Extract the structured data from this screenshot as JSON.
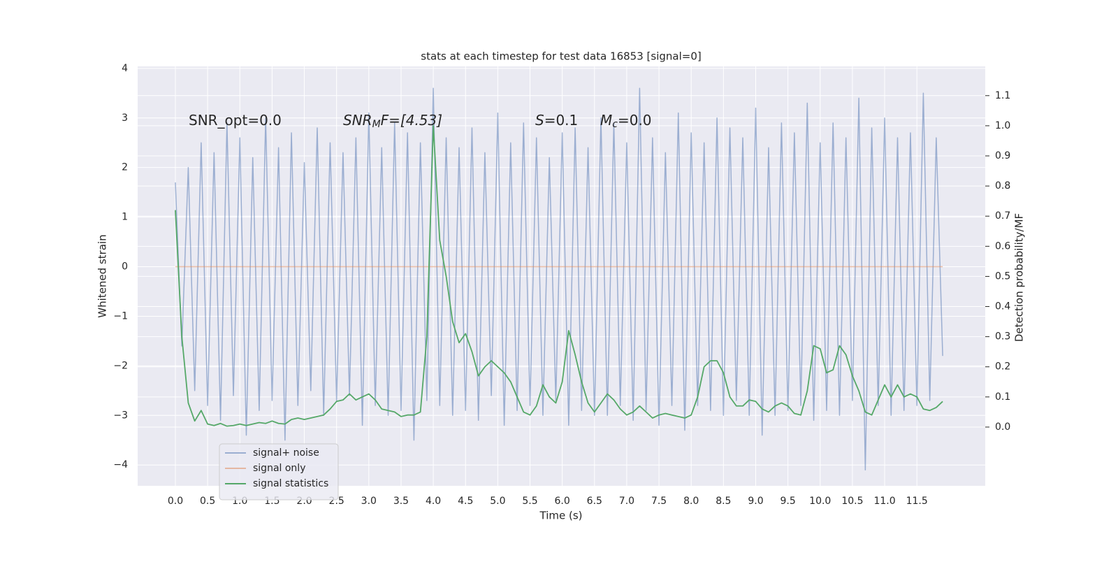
{
  "chart_data": {
    "type": "line",
    "title": "stats at each timestep for test data 16853 [signal=0]",
    "xlabel": "Time (s)",
    "ylabel": "Whitened strain",
    "y2label": "Detection probability/MF",
    "annotations": [
      {
        "text": "SNR_opt=0.0"
      },
      {
        "main": "SNR",
        "sub": "M",
        "tail": "F=[4.53]"
      },
      {
        "main": "S",
        "tail": "=0.1"
      },
      {
        "main": "M",
        "sub": "c",
        "tail": "=0.0"
      }
    ],
    "grid": true,
    "legend": "lower left",
    "xlim": [
      -0.585,
      12.56
    ],
    "ylim": [
      -4.42,
      4.04
    ],
    "y2lim": [
      -0.195,
      1.197
    ],
    "xticks": [
      {
        "value": 0,
        "label": "0.0"
      },
      0.5,
      {
        "value": 1,
        "label": "1.0"
      },
      1.5,
      {
        "value": 2,
        "label": "2.0"
      },
      2.5,
      {
        "value": 3,
        "label": "3.0"
      },
      3.5,
      {
        "value": 4,
        "label": "4.0"
      },
      4.5,
      {
        "value": 5,
        "label": "5.0"
      },
      5.5,
      {
        "value": 6,
        "label": "6.0"
      },
      6.5,
      {
        "value": 7,
        "label": "7.0"
      },
      7.5,
      {
        "value": 8,
        "label": "8.0"
      },
      8.5,
      {
        "value": 9,
        "label": "9.0"
      },
      9.5,
      {
        "value": 10,
        "label": "10.0"
      },
      10.5,
      {
        "value": 11,
        "label": "11.0"
      },
      11.5
    ],
    "yticks": [
      {
        "value": -4,
        "label": "−4"
      },
      {
        "value": -3,
        "label": "−3"
      },
      {
        "value": -2,
        "label": "−2"
      },
      {
        "value": -1,
        "label": "−1"
      },
      0,
      1,
      2,
      3,
      4
    ],
    "y2ticks": [
      {
        "value": 0,
        "label": "0.0"
      },
      0.1,
      0.2,
      0.3,
      0.4,
      0.5,
      0.6,
      0.7,
      0.8,
      0.9,
      {
        "value": 1,
        "label": "1.0"
      },
      1.1
    ],
    "x": [
      0,
      0.1,
      0.2,
      0.3,
      0.4,
      0.5,
      0.6,
      0.7,
      0.8,
      0.9,
      1,
      1.1,
      1.2,
      1.3,
      1.4,
      1.5,
      1.6,
      1.7,
      1.8,
      1.9,
      2,
      2.1,
      2.2,
      2.3,
      2.4,
      2.5,
      2.6,
      2.7,
      2.8,
      2.9,
      3,
      3.1,
      3.2,
      3.3,
      3.4,
      3.5,
      3.6,
      3.7,
      3.8,
      3.9,
      4,
      4.1,
      4.2,
      4.3,
      4.4,
      4.5,
      4.6,
      4.7,
      4.8,
      4.9,
      5,
      5.1,
      5.2,
      5.3,
      5.4,
      5.5,
      5.6,
      5.7,
      5.8,
      5.9,
      6,
      6.1,
      6.2,
      6.3,
      6.4,
      6.5,
      6.6,
      6.7,
      6.8,
      6.9,
      7,
      7.1,
      7.2,
      7.3,
      7.4,
      7.5,
      7.6,
      7.7,
      7.8,
      7.9,
      8,
      8.1,
      8.2,
      8.3,
      8.4,
      8.5,
      8.6,
      8.7,
      8.8,
      8.9,
      9,
      9.1,
      9.2,
      9.3,
      9.4,
      9.5,
      9.6,
      9.7,
      9.8,
      9.9,
      10,
      10.1,
      10.2,
      10.3,
      10.4,
      10.5,
      10.6,
      10.7,
      10.8,
      10.9,
      11,
      11.1,
      11.2,
      11.3,
      11.4,
      11.5,
      11.6,
      11.7,
      11.8,
      11.9
    ],
    "series": [
      {
        "name": "signal+ noise",
        "color": "#4c72b0",
        "values": [
          1.7,
          -1.6,
          2.0,
          -2.5,
          2.5,
          -2.8,
          2.3,
          -3.1,
          2.9,
          -2.6,
          2.6,
          -3.4,
          2.2,
          -2.9,
          3.0,
          -2.7,
          2.4,
          -3.5,
          2.7,
          -2.8,
          2.1,
          -2.5,
          2.8,
          -3.0,
          2.5,
          -2.7,
          2.3,
          -2.6,
          2.6,
          -3.2,
          3.1,
          -2.8,
          2.4,
          -3.0,
          2.9,
          -2.9,
          2.7,
          -3.5,
          2.5,
          -2.7,
          3.6,
          -2.8,
          2.6,
          -3.0,
          2.4,
          -2.9,
          2.8,
          -3.1,
          2.3,
          -2.6,
          3.1,
          -3.2,
          2.5,
          -2.9,
          2.9,
          -2.8,
          2.6,
          -3.0,
          2.2,
          -2.7,
          2.7,
          -3.2,
          2.8,
          -2.9,
          2.4,
          -3.0,
          3.0,
          -3.0,
          2.9,
          -2.8,
          2.5,
          -3.1,
          3.6,
          -2.9,
          2.6,
          -3.2,
          2.3,
          -2.8,
          3.1,
          -3.3,
          2.7,
          -2.8,
          2.5,
          -2.9,
          3.0,
          -3.0,
          2.8,
          -2.7,
          2.6,
          -3.0,
          3.2,
          -3.4,
          2.4,
          -3.0,
          2.9,
          -2.9,
          2.7,
          -2.8,
          3.3,
          -3.1,
          2.5,
          -2.9,
          2.9,
          -3.0,
          2.6,
          -2.7,
          3.4,
          -4.1,
          2.8,
          -2.8,
          3.0,
          -3.0,
          2.6,
          -2.9,
          2.7,
          -2.8,
          3.5,
          -2.7,
          2.6,
          -1.8
        ]
      },
      {
        "name": "signal only",
        "color": "#dd8452",
        "values": [
          0,
          0,
          0,
          0,
          0,
          0,
          0,
          0,
          0,
          0,
          0,
          0,
          0,
          0,
          0,
          0,
          0,
          0,
          0,
          0,
          0,
          0,
          0,
          0,
          0,
          0,
          0,
          0,
          0,
          0,
          0,
          0,
          0,
          0,
          0,
          0,
          0,
          0,
          0,
          0,
          0,
          0,
          0,
          0,
          0,
          0,
          0,
          0,
          0,
          0,
          0,
          0,
          0,
          0,
          0,
          0,
          0,
          0,
          0,
          0,
          0,
          0,
          0,
          0,
          0,
          0,
          0,
          0,
          0,
          0,
          0,
          0,
          0,
          0,
          0,
          0,
          0,
          0,
          0,
          0,
          0,
          0,
          0,
          0,
          0,
          0,
          0,
          0,
          0,
          0,
          0,
          0,
          0,
          0,
          0,
          0,
          0,
          0,
          0,
          0,
          0,
          0,
          0,
          0,
          0,
          0,
          0,
          0,
          0,
          0,
          0,
          0,
          0,
          0,
          0,
          0,
          0,
          0,
          0,
          0
        ]
      },
      {
        "name": "signal statistics",
        "color": "#55a868",
        "axis": "y2",
        "values": [
          0.72,
          0.3,
          0.08,
          0.02,
          0.055,
          0.01,
          0.005,
          0.012,
          0.003,
          0.005,
          0.01,
          0.005,
          0.01,
          0.015,
          0.012,
          0.02,
          0.012,
          0.01,
          0.025,
          0.03,
          0.025,
          0.03,
          0.035,
          0.04,
          0.06,
          0.085,
          0.09,
          0.11,
          0.09,
          0.1,
          0.11,
          0.09,
          0.06,
          0.055,
          0.05,
          0.035,
          0.04,
          0.04,
          0.05,
          0.3,
          1.0,
          0.62,
          0.5,
          0.35,
          0.28,
          0.31,
          0.25,
          0.17,
          0.2,
          0.22,
          0.2,
          0.18,
          0.15,
          0.1,
          0.05,
          0.04,
          0.07,
          0.14,
          0.1,
          0.08,
          0.15,
          0.32,
          0.24,
          0.15,
          0.08,
          0.05,
          0.08,
          0.11,
          0.09,
          0.06,
          0.04,
          0.05,
          0.07,
          0.05,
          0.03,
          0.04,
          0.045,
          0.04,
          0.035,
          0.03,
          0.04,
          0.1,
          0.2,
          0.22,
          0.22,
          0.18,
          0.1,
          0.07,
          0.07,
          0.09,
          0.085,
          0.06,
          0.05,
          0.07,
          0.08,
          0.07,
          0.045,
          0.04,
          0.12,
          0.27,
          0.26,
          0.18,
          0.19,
          0.27,
          0.24,
          0.17,
          0.12,
          0.05,
          0.04,
          0.09,
          0.14,
          0.1,
          0.14,
          0.1,
          0.11,
          0.1,
          0.06,
          0.055,
          0.065,
          0.085
        ]
      }
    ]
  }
}
